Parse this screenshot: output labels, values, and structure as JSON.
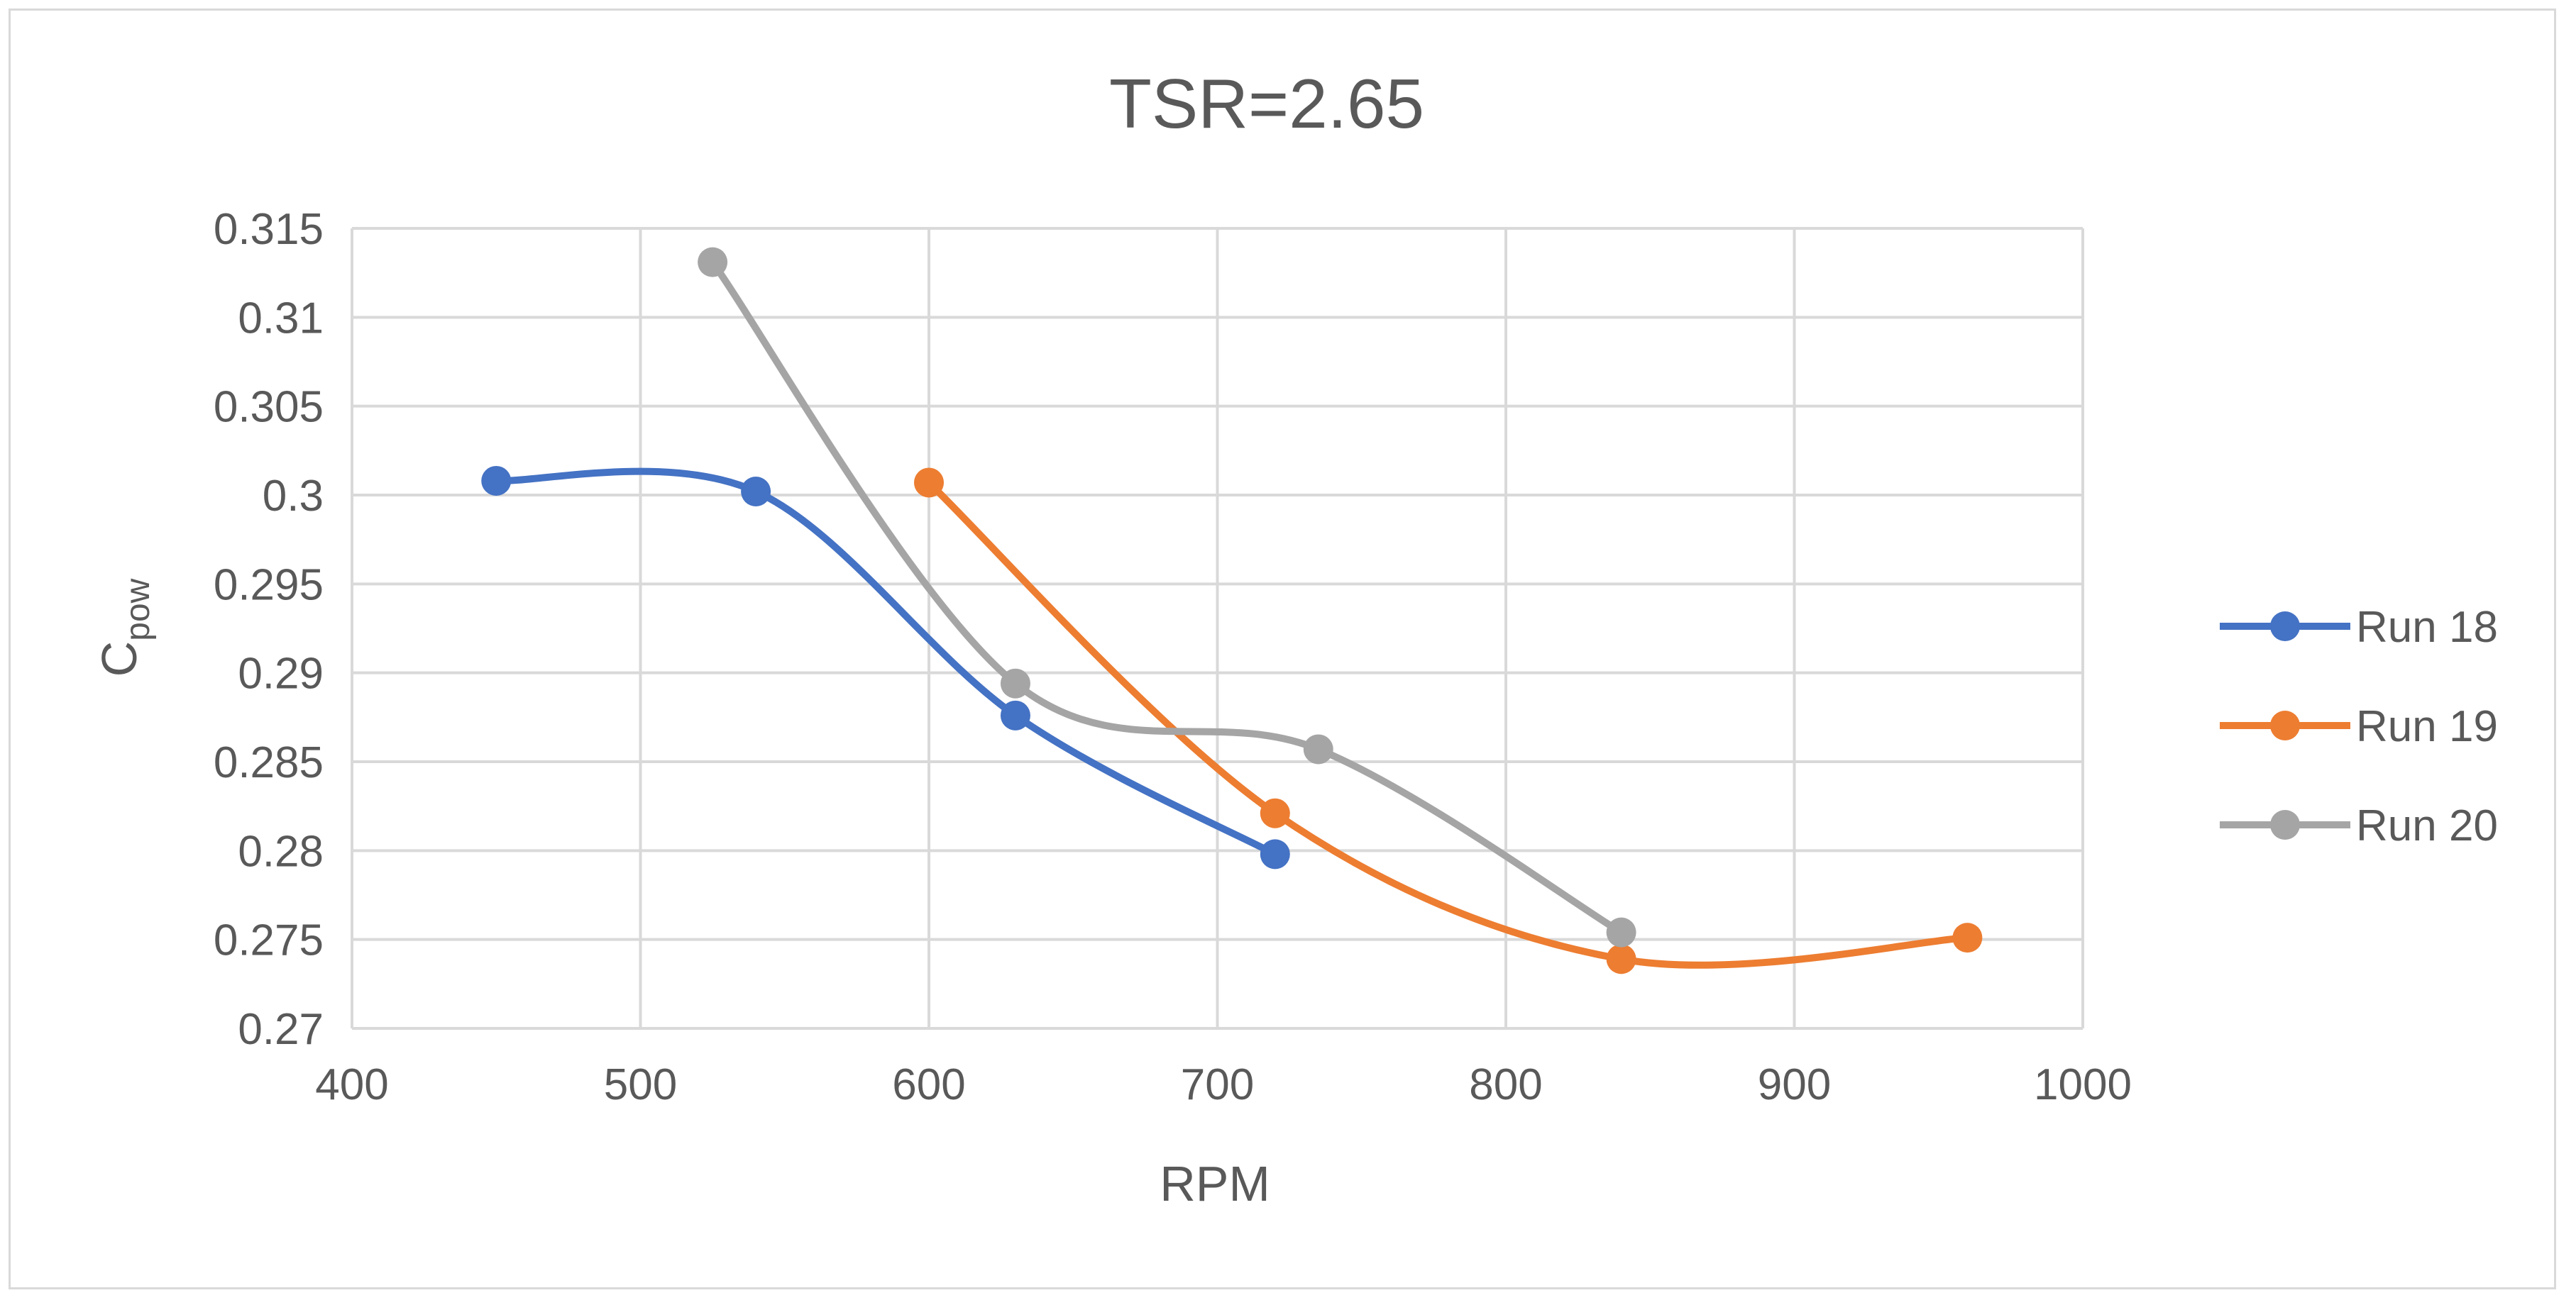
{
  "chart_data": {
    "type": "line",
    "title": "TSR=2.65",
    "xlabel": "RPM",
    "ylabel": {
      "main": "C",
      "sub": "pow"
    },
    "xlim": [
      400,
      1000
    ],
    "ylim": [
      0.27,
      0.315
    ],
    "xticks": [
      400,
      500,
      600,
      700,
      800,
      900,
      1000
    ],
    "yticks": [
      0.27,
      0.275,
      0.28,
      0.285,
      0.29,
      0.295,
      0.3,
      0.305,
      0.31,
      0.315
    ],
    "xtick_labels": [
      "400",
      "500",
      "600",
      "700",
      "800",
      "900",
      "1000"
    ],
    "ytick_labels": [
      "0.27",
      "0.275",
      "0.28",
      "0.285",
      "0.29",
      "0.295",
      "0.3",
      "0.305",
      "0.31",
      "0.315"
    ],
    "grid": true,
    "legend_position": "right",
    "smooth": true,
    "series": [
      {
        "name": "Run 18",
        "color": "#4472C4",
        "x": [
          450,
          540,
          630,
          720
        ],
        "y": [
          0.3008,
          0.3002,
          0.2876,
          0.2798
        ]
      },
      {
        "name": "Run 19",
        "color": "#ED7D31",
        "x": [
          600,
          720,
          840,
          960
        ],
        "y": [
          0.3007,
          0.2821,
          0.2739,
          0.2751
        ]
      },
      {
        "name": "Run 20",
        "color": "#A5A5A5",
        "x": [
          525,
          630,
          735,
          840
        ],
        "y": [
          0.3131,
          0.2894,
          0.2857,
          0.2754
        ]
      }
    ]
  }
}
